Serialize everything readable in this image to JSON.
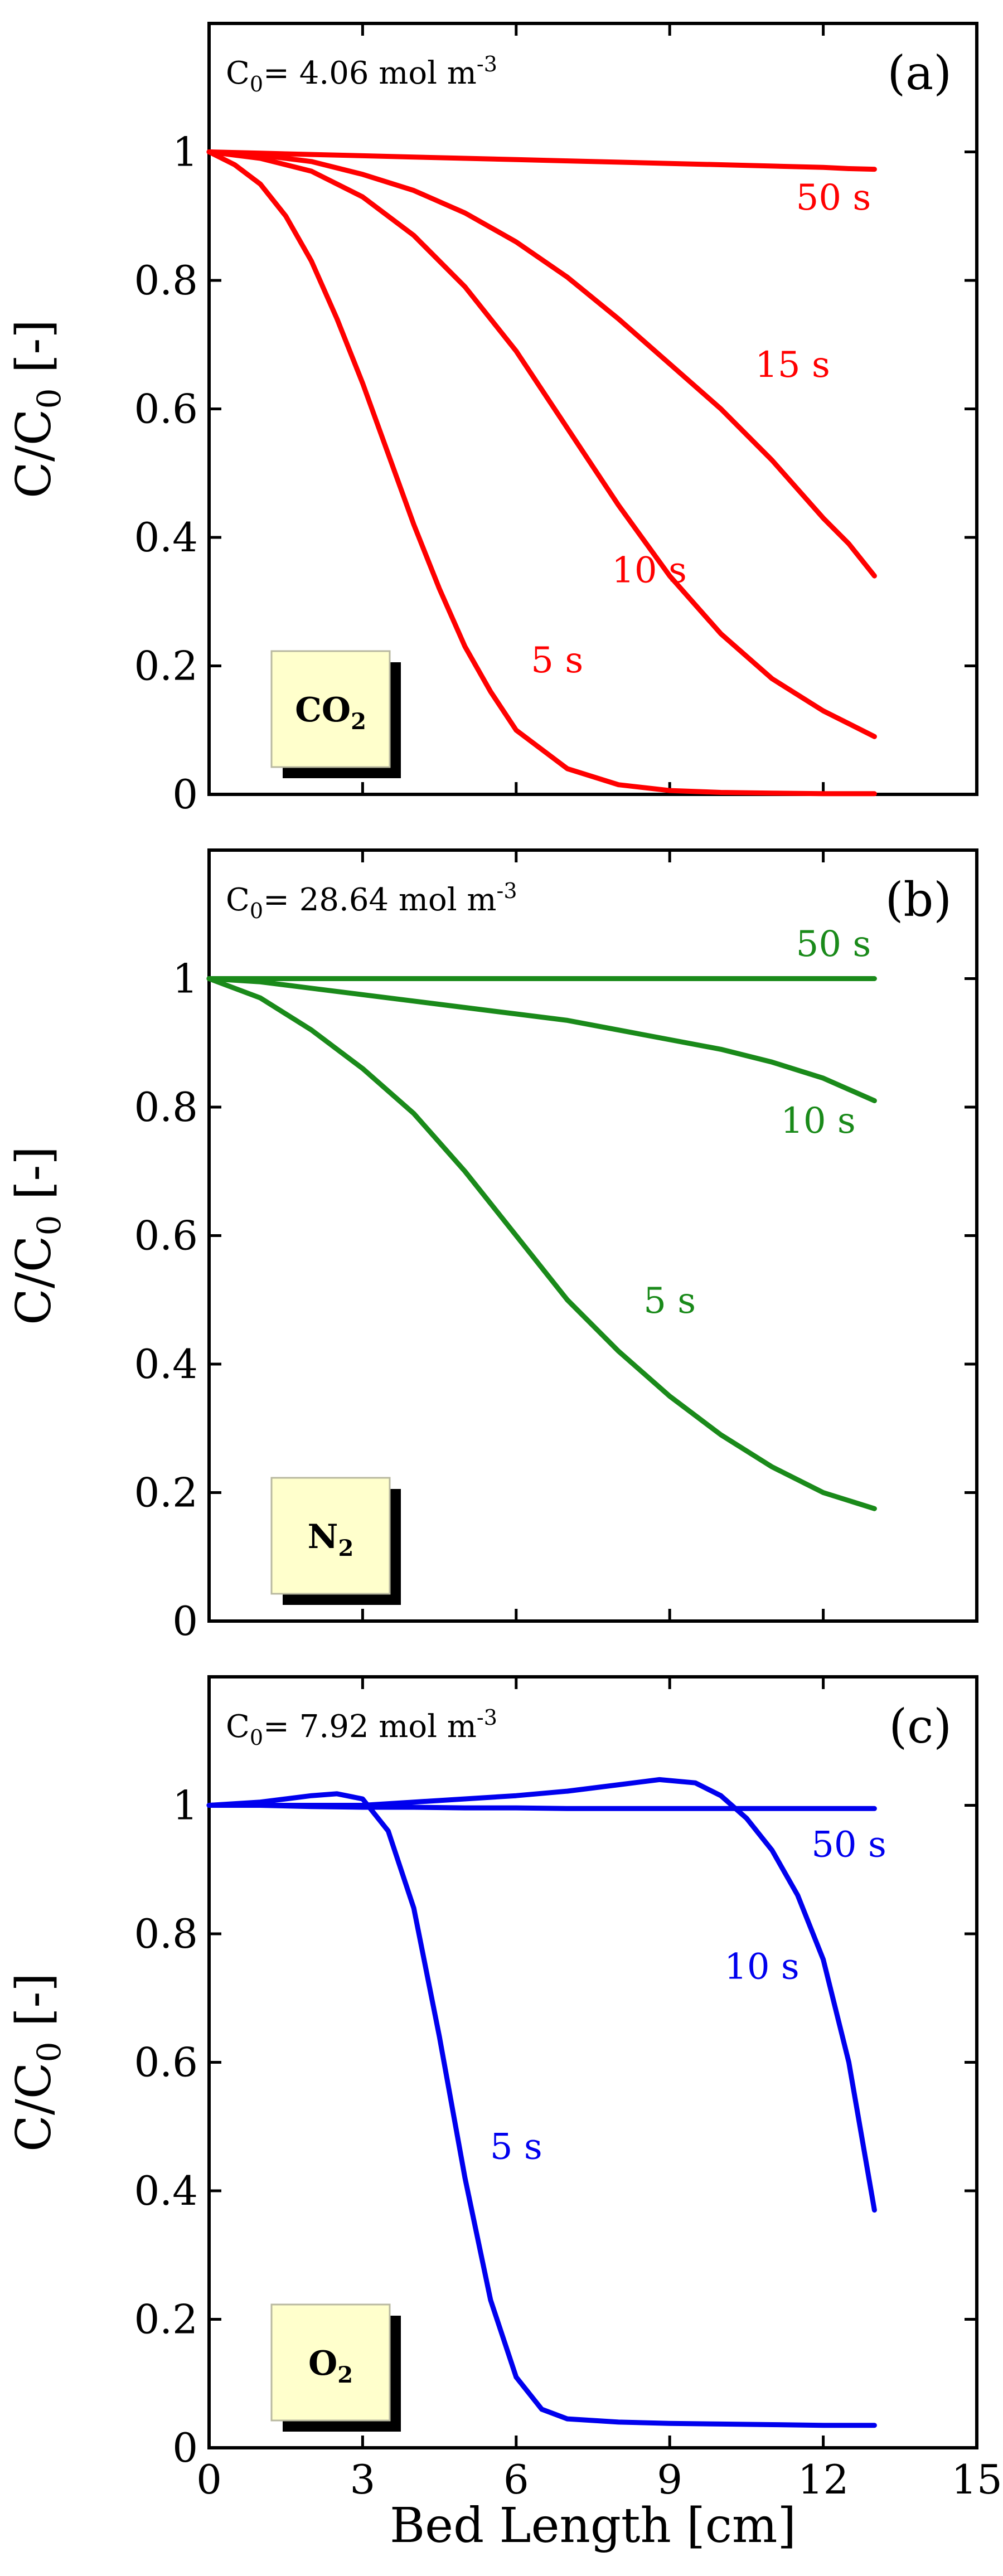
{
  "figure": {
    "xlabel": "Bed Length [cm]"
  },
  "chart_data": [
    {
      "type": "line",
      "panel": "(a)",
      "species": "CO2",
      "species_main": "CO",
      "species_sub": "2",
      "concentration": "C0= 4.06 mol m-3",
      "conc_prefix": "C",
      "conc_sub": "0",
      "conc_value": "= 4.06 mol m",
      "conc_sup": "-3",
      "ylabel": "C/C0 [-]",
      "ylabel_main": "C/C",
      "ylabel_sub": "0",
      "ylabel_end": " [-]",
      "color": "#ff0000",
      "xlim": [
        0,
        15
      ],
      "ylim": [
        0,
        1.2
      ],
      "xticks": [
        0,
        3,
        6,
        9,
        12,
        15
      ],
      "xtick_labels": [
        "0",
        "3",
        "6",
        "9",
        "12",
        "15"
      ],
      "yticks": [
        0,
        0.2,
        0.4,
        0.6,
        0.8,
        1
      ],
      "ytick_labels": [
        "0",
        "0.2",
        "0.4",
        "0.6",
        "0.8",
        "1"
      ],
      "show_xtick_labels": false,
      "series": [
        {
          "name": "50 s",
          "x": [
            0,
            1,
            2,
            3,
            4,
            5,
            6,
            7,
            8,
            9,
            10,
            11,
            12,
            12.5,
            13
          ],
          "y": [
            1.0,
            0.998,
            0.996,
            0.994,
            0.992,
            0.99,
            0.988,
            0.986,
            0.984,
            0.982,
            0.98,
            0.978,
            0.976,
            0.974,
            0.973
          ]
        },
        {
          "name": "15 s",
          "x": [
            0,
            1,
            2,
            3,
            4,
            5,
            6,
            7,
            8,
            9,
            10,
            11,
            12,
            12.5,
            13
          ],
          "y": [
            1.0,
            0.995,
            0.985,
            0.965,
            0.94,
            0.905,
            0.86,
            0.805,
            0.74,
            0.67,
            0.6,
            0.52,
            0.43,
            0.39,
            0.34
          ]
        },
        {
          "name": "10 s",
          "x": [
            0,
            1,
            2,
            3,
            4,
            5,
            6,
            7,
            8,
            9,
            10,
            11,
            12,
            12.5,
            13
          ],
          "y": [
            1.0,
            0.99,
            0.97,
            0.93,
            0.87,
            0.79,
            0.69,
            0.57,
            0.45,
            0.34,
            0.25,
            0.18,
            0.13,
            0.11,
            0.09
          ]
        },
        {
          "name": "5 s",
          "x": [
            0,
            0.5,
            1,
            1.5,
            2,
            2.5,
            3,
            3.5,
            4,
            4.5,
            5,
            5.5,
            6,
            7,
            8,
            9,
            10,
            11,
            12,
            13
          ],
          "y": [
            1.0,
            0.98,
            0.95,
            0.9,
            0.83,
            0.74,
            0.64,
            0.53,
            0.42,
            0.32,
            0.23,
            0.16,
            0.1,
            0.04,
            0.015,
            0.006,
            0.003,
            0.002,
            0.001,
            0.001
          ]
        }
      ],
      "curve_labels": [
        {
          "text": "50 s",
          "x": 12.2,
          "y": 0.91
        },
        {
          "text": "15 s",
          "x": 11.4,
          "y": 0.65
        },
        {
          "text": "10 s",
          "x": 8.6,
          "y": 0.33
        },
        {
          "text": "5 s",
          "x": 6.8,
          "y": 0.19
        }
      ]
    },
    {
      "type": "line",
      "panel": "(b)",
      "species": "N2",
      "species_main": "N",
      "species_sub": "2",
      "concentration": "C0= 28.64 mol m-3",
      "conc_prefix": "C",
      "conc_sub": "0",
      "conc_value": "= 28.64 mol m",
      "conc_sup": "-3",
      "ylabel": "C/C0 [-]",
      "ylabel_main": "C/C",
      "ylabel_sub": "0",
      "ylabel_end": " [-]",
      "color": "#1a8a1a",
      "xlim": [
        0,
        15
      ],
      "ylim": [
        0,
        1.2
      ],
      "xticks": [
        0,
        3,
        6,
        9,
        12,
        15
      ],
      "xtick_labels": [
        "0",
        "3",
        "6",
        "9",
        "12",
        "15"
      ],
      "yticks": [
        0,
        0.2,
        0.4,
        0.6,
        0.8,
        1
      ],
      "ytick_labels": [
        "0",
        "0.2",
        "0.4",
        "0.6",
        "0.8",
        "1"
      ],
      "show_xtick_labels": false,
      "series": [
        {
          "name": "50 s",
          "x": [
            0,
            1,
            2,
            3,
            4,
            5,
            6,
            7,
            8,
            9,
            10,
            11,
            12,
            13
          ],
          "y": [
            1.0,
            1.0,
            1.0,
            1.0,
            1.0,
            1.0,
            1.0,
            1.0,
            1.0,
            1.0,
            1.0,
            1.0,
            1.0,
            1.0
          ]
        },
        {
          "name": "10 s",
          "x": [
            0,
            1,
            2,
            3,
            4,
            5,
            6,
            7,
            8,
            9,
            10,
            11,
            12,
            13
          ],
          "y": [
            1.0,
            0.995,
            0.985,
            0.975,
            0.965,
            0.955,
            0.945,
            0.935,
            0.92,
            0.905,
            0.89,
            0.87,
            0.845,
            0.81
          ]
        },
        {
          "name": "5 s",
          "x": [
            0,
            1,
            2,
            3,
            4,
            5,
            6,
            7,
            8,
            9,
            10,
            11,
            12,
            13
          ],
          "y": [
            1.0,
            0.97,
            0.92,
            0.86,
            0.79,
            0.7,
            0.6,
            0.5,
            0.42,
            0.35,
            0.29,
            0.24,
            0.2,
            0.175
          ]
        }
      ],
      "curve_labels": [
        {
          "text": "50 s",
          "x": 12.2,
          "y": 1.035
        },
        {
          "text": "10 s",
          "x": 11.9,
          "y": 0.76
        },
        {
          "text": "5 s",
          "x": 9.0,
          "y": 0.48
        }
      ]
    },
    {
      "type": "line",
      "panel": "(c)",
      "species": "O2",
      "species_main": "O",
      "species_sub": "2",
      "concentration": "C0= 7.92 mol m-3",
      "conc_prefix": "C",
      "conc_sub": "0",
      "conc_value": "= 7.92 mol m",
      "conc_sup": "-3",
      "ylabel": "C/C0 [-]",
      "ylabel_main": "C/C",
      "ylabel_sub": "0",
      "ylabel_end": " [-]",
      "color": "#0000ee",
      "xlim": [
        0,
        15
      ],
      "ylim": [
        0,
        1.2
      ],
      "xticks": [
        0,
        3,
        6,
        9,
        12,
        15
      ],
      "xtick_labels": [
        "0",
        "3",
        "6",
        "9",
        "12",
        "15"
      ],
      "yticks": [
        0,
        0.2,
        0.4,
        0.6,
        0.8,
        1
      ],
      "ytick_labels": [
        "0",
        "0.2",
        "0.4",
        "0.6",
        "0.8",
        "1"
      ],
      "show_xtick_labels": true,
      "series": [
        {
          "name": "50 s",
          "x": [
            0,
            1,
            2,
            3,
            4,
            5,
            6,
            7,
            8,
            9,
            10,
            11,
            12,
            13
          ],
          "y": [
            1.0,
            1.0,
            0.998,
            0.997,
            0.997,
            0.996,
            0.996,
            0.995,
            0.995,
            0.995,
            0.995,
            0.995,
            0.995,
            0.995
          ]
        },
        {
          "name": "10 s",
          "x": [
            0,
            1,
            2,
            3,
            4,
            5,
            6,
            7,
            8,
            8.8,
            9.5,
            10,
            10.5,
            11,
            11.5,
            12,
            12.5,
            13
          ],
          "y": [
            1.0,
            1.0,
            1.0,
            1.0,
            1.005,
            1.01,
            1.015,
            1.022,
            1.032,
            1.04,
            1.035,
            1.015,
            0.98,
            0.93,
            0.86,
            0.76,
            0.6,
            0.37
          ]
        },
        {
          "name": "5 s",
          "x": [
            0,
            1,
            2,
            2.5,
            3,
            3.5,
            4,
            4.5,
            5,
            5.5,
            6,
            6.5,
            7,
            8,
            9,
            10,
            11,
            12,
            13
          ],
          "y": [
            1.0,
            1.005,
            1.015,
            1.018,
            1.01,
            0.96,
            0.84,
            0.64,
            0.42,
            0.23,
            0.11,
            0.06,
            0.045,
            0.04,
            0.038,
            0.037,
            0.036,
            0.035,
            0.035
          ]
        }
      ],
      "curve_labels": [
        {
          "text": "50 s",
          "x": 12.5,
          "y": 0.92
        },
        {
          "text": "10 s",
          "x": 10.8,
          "y": 0.73
        },
        {
          "text": "5 s",
          "x": 6.0,
          "y": 0.45
        }
      ]
    }
  ]
}
